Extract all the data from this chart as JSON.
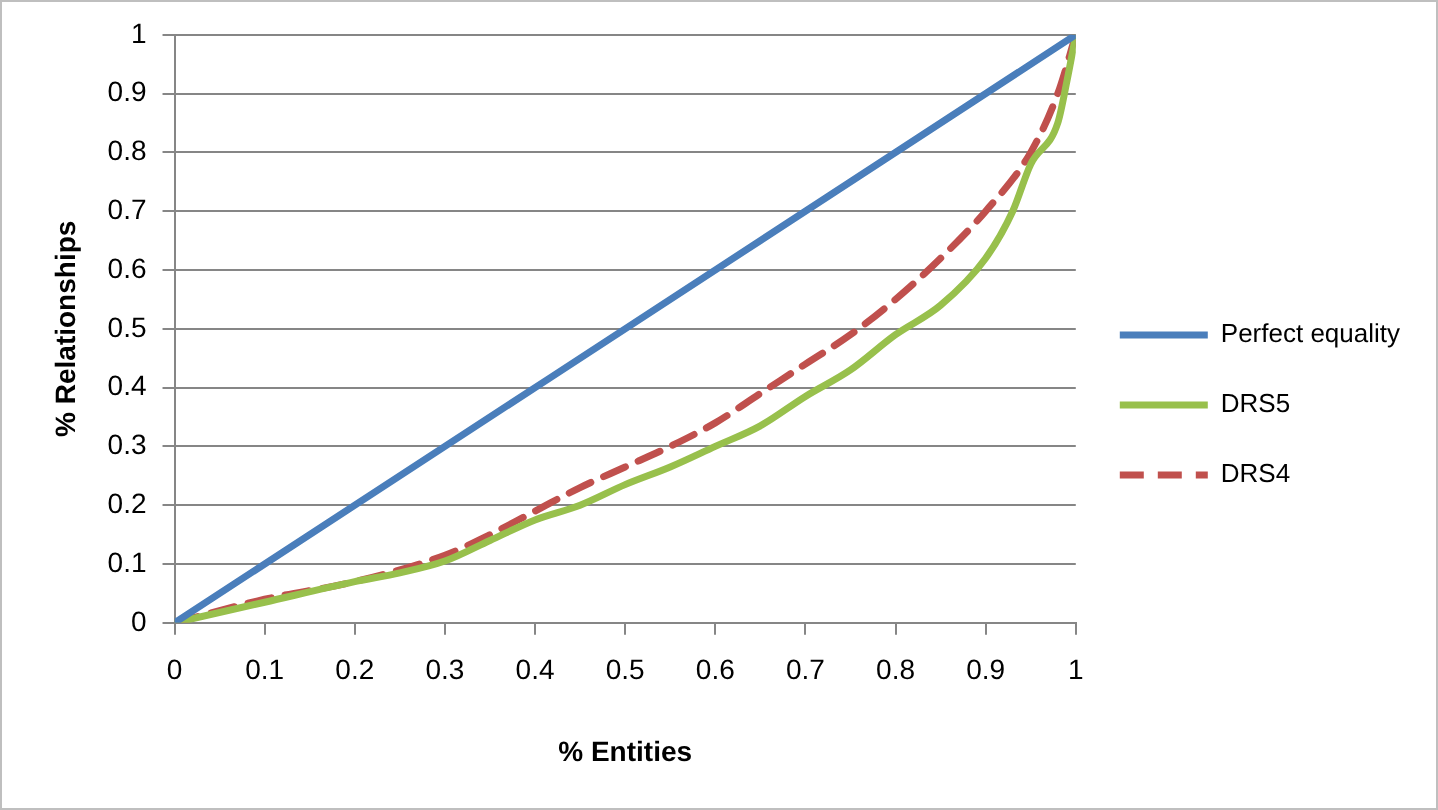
{
  "chart_data": {
    "type": "line",
    "xlabel": "% Entities",
    "ylabel": "% Relationships",
    "xlim": [
      0,
      1
    ],
    "ylim": [
      0,
      1
    ],
    "xticks": [
      0,
      0.1,
      0.2,
      0.3,
      0.4,
      0.5,
      0.6,
      0.7,
      0.8,
      0.9,
      1
    ],
    "yticks": [
      0,
      0.1,
      0.2,
      0.3,
      0.4,
      0.5,
      0.6,
      0.7,
      0.8,
      0.9,
      1
    ],
    "grid": "y",
    "legend": "right",
    "marker": "none",
    "series": [
      {
        "name": "Perfect equality",
        "color": "#4a7ebb",
        "x": [
          0,
          1
        ],
        "values": [
          0,
          1
        ],
        "line_style": "solid"
      },
      {
        "name": "DRS5",
        "color": "#98c04c",
        "x": [
          0,
          0.1,
          0.2,
          0.25,
          0.3,
          0.35,
          0.4,
          0.45,
          0.5,
          0.55,
          0.6,
          0.65,
          0.7,
          0.75,
          0.8,
          0.85,
          0.9,
          0.93,
          0.95,
          0.98,
          0.99,
          1
        ],
        "values": [
          0,
          0.035,
          0.07,
          0.085,
          0.105,
          0.14,
          0.175,
          0.2,
          0.235,
          0.265,
          0.3,
          0.335,
          0.385,
          0.43,
          0.49,
          0.54,
          0.62,
          0.7,
          0.78,
          0.85,
          0.92,
          1
        ],
        "line_style": "solid"
      },
      {
        "name": "DRS4",
        "color": "#c0504d",
        "x": [
          0,
          0.1,
          0.2,
          0.3,
          0.35,
          0.4,
          0.45,
          0.5,
          0.55,
          0.6,
          0.65,
          0.7,
          0.75,
          0.8,
          0.85,
          0.9,
          0.95,
          0.98,
          1
        ],
        "values": [
          0,
          0.04,
          0.07,
          0.115,
          0.15,
          0.19,
          0.23,
          0.265,
          0.3,
          0.34,
          0.39,
          0.44,
          0.49,
          0.55,
          0.62,
          0.7,
          0.8,
          0.9,
          1
        ],
        "line_style": "dashed"
      }
    ]
  }
}
